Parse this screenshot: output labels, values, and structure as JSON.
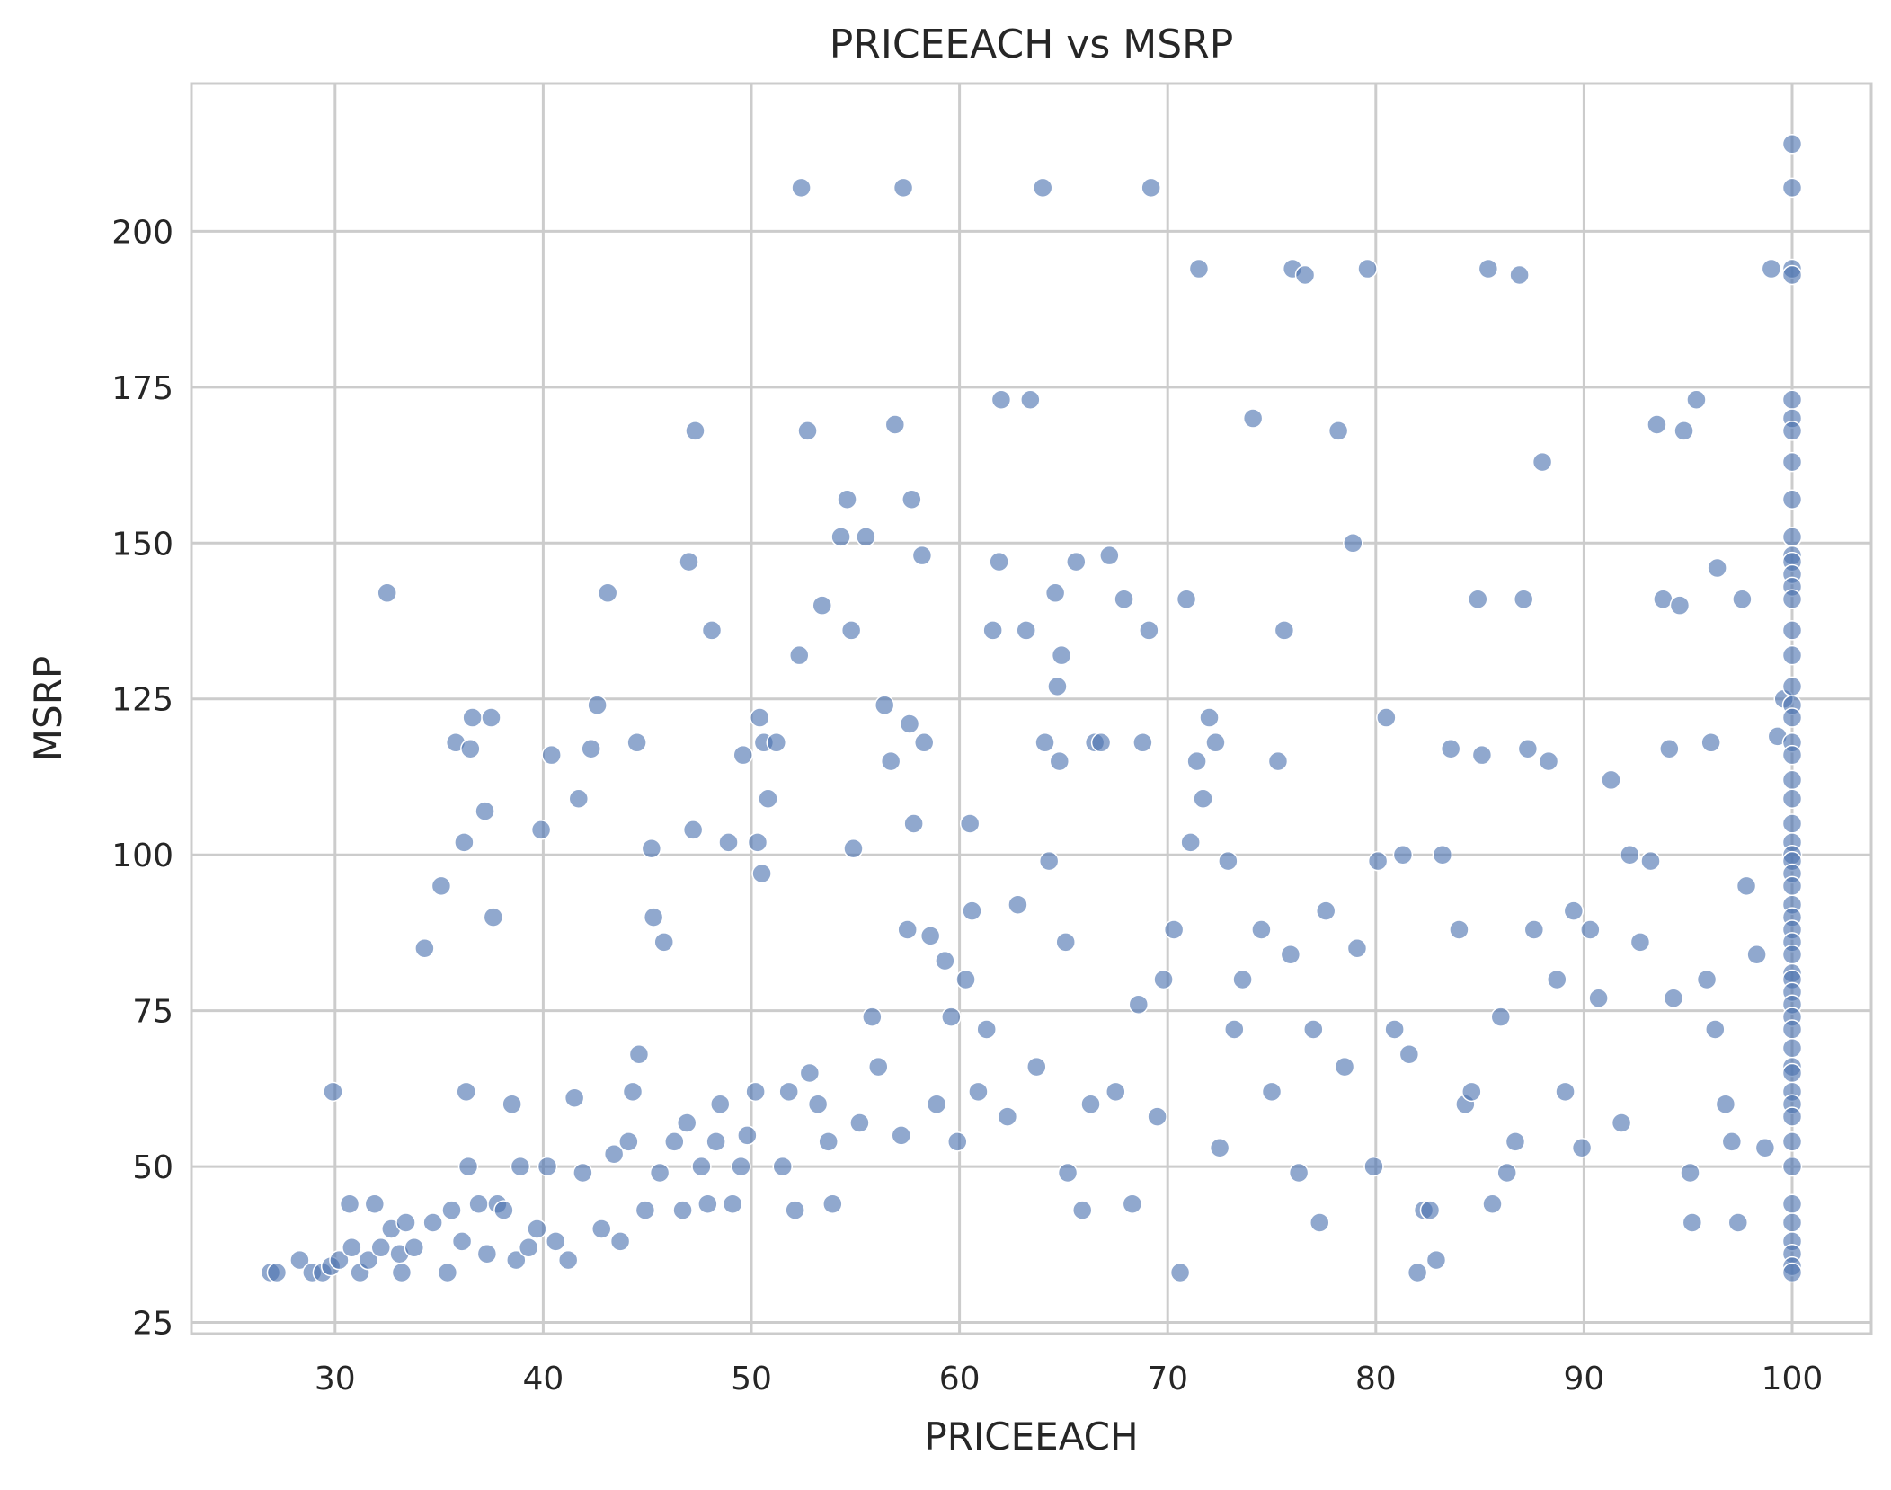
{
  "chart_data": {
    "type": "scatter",
    "title": "PRICEEACH vs MSRP",
    "xlabel": "PRICEEACH",
    "ylabel": "MSRP",
    "xlim": [
      23.1,
      103.8
    ],
    "ylim": [
      23.2,
      223.7
    ],
    "xticks": [
      30,
      40,
      50,
      60,
      70,
      80,
      90,
      100
    ],
    "yticks": [
      25,
      50,
      75,
      100,
      125,
      150,
      175,
      200
    ],
    "xtick_labels": [
      "30",
      "40",
      "50",
      "60",
      "70",
      "80",
      "90",
      "100"
    ],
    "ytick_labels": [
      "25",
      "50",
      "75",
      "100",
      "125",
      "150",
      "175",
      "200"
    ],
    "grid": true,
    "legend": "none",
    "marker_color": "#4C72B0",
    "marker_opacity": 0.62,
    "series": [
      {
        "points": [
          [
            26.9,
            33
          ],
          [
            27.2,
            33
          ],
          [
            28.3,
            35
          ],
          [
            28.9,
            33
          ],
          [
            29.4,
            33
          ],
          [
            29.8,
            34
          ],
          [
            29.9,
            62
          ],
          [
            30.2,
            35
          ],
          [
            30.7,
            44
          ],
          [
            30.8,
            37
          ],
          [
            31.2,
            33
          ],
          [
            31.6,
            35
          ],
          [
            31.9,
            44
          ],
          [
            32.2,
            37
          ],
          [
            32.5,
            142
          ],
          [
            32.7,
            40
          ],
          [
            33.1,
            36
          ],
          [
            33.2,
            33
          ],
          [
            33.4,
            41
          ],
          [
            33.8,
            37
          ],
          [
            34.3,
            85
          ],
          [
            34.7,
            41
          ],
          [
            35.1,
            95
          ],
          [
            35.4,
            33
          ],
          [
            35.6,
            43
          ],
          [
            35.8,
            118
          ],
          [
            36.1,
            38
          ],
          [
            36.2,
            102
          ],
          [
            36.3,
            62
          ],
          [
            36.4,
            50
          ],
          [
            36.5,
            117
          ],
          [
            36.6,
            122
          ],
          [
            36.9,
            44
          ],
          [
            37.2,
            107
          ],
          [
            37.3,
            36
          ],
          [
            37.5,
            122
          ],
          [
            37.6,
            90
          ],
          [
            37.8,
            44
          ],
          [
            38.1,
            43
          ],
          [
            38.5,
            60
          ],
          [
            38.7,
            35
          ],
          [
            38.9,
            50
          ],
          [
            39.3,
            37
          ],
          [
            39.7,
            40
          ],
          [
            39.9,
            104
          ],
          [
            40.2,
            50
          ],
          [
            40.4,
            116
          ],
          [
            40.6,
            38
          ],
          [
            41.2,
            35
          ],
          [
            41.5,
            61
          ],
          [
            41.7,
            109
          ],
          [
            41.9,
            49
          ],
          [
            42.3,
            117
          ],
          [
            42.6,
            124
          ],
          [
            42.8,
            40
          ],
          [
            43.1,
            142
          ],
          [
            43.4,
            52
          ],
          [
            43.7,
            38
          ],
          [
            44.1,
            54
          ],
          [
            44.3,
            62
          ],
          [
            44.5,
            118
          ],
          [
            44.6,
            68
          ],
          [
            44.9,
            43
          ],
          [
            45.2,
            101
          ],
          [
            45.3,
            90
          ],
          [
            45.6,
            49
          ],
          [
            45.8,
            86
          ],
          [
            46.3,
            54
          ],
          [
            46.7,
            43
          ],
          [
            46.9,
            57
          ],
          [
            47.0,
            147
          ],
          [
            47.2,
            104
          ],
          [
            47.3,
            168
          ],
          [
            47.6,
            50
          ],
          [
            47.9,
            44
          ],
          [
            48.1,
            136
          ],
          [
            48.3,
            54
          ],
          [
            48.5,
            60
          ],
          [
            48.9,
            102
          ],
          [
            49.1,
            44
          ],
          [
            49.5,
            50
          ],
          [
            49.6,
            116
          ],
          [
            49.8,
            55
          ],
          [
            50.2,
            62
          ],
          [
            50.3,
            102
          ],
          [
            50.4,
            122
          ],
          [
            50.5,
            97
          ],
          [
            50.6,
            118
          ],
          [
            50.8,
            109
          ],
          [
            51.2,
            118
          ],
          [
            51.5,
            50
          ],
          [
            51.8,
            62
          ],
          [
            52.1,
            43
          ],
          [
            52.3,
            132
          ],
          [
            52.4,
            207
          ],
          [
            52.7,
            168
          ],
          [
            52.8,
            65
          ],
          [
            53.2,
            60
          ],
          [
            53.4,
            140
          ],
          [
            53.7,
            54
          ],
          [
            53.9,
            44
          ],
          [
            54.3,
            151
          ],
          [
            54.6,
            157
          ],
          [
            54.8,
            136
          ],
          [
            54.9,
            101
          ],
          [
            55.2,
            57
          ],
          [
            55.5,
            151
          ],
          [
            55.8,
            74
          ],
          [
            56.1,
            66
          ],
          [
            56.4,
            124
          ],
          [
            56.7,
            115
          ],
          [
            56.9,
            169
          ],
          [
            57.2,
            55
          ],
          [
            57.3,
            207
          ],
          [
            57.5,
            88
          ],
          [
            57.6,
            121
          ],
          [
            57.7,
            157
          ],
          [
            57.8,
            105
          ],
          [
            58.2,
            148
          ],
          [
            58.3,
            118
          ],
          [
            58.6,
            87
          ],
          [
            58.9,
            60
          ],
          [
            59.3,
            83
          ],
          [
            59.6,
            74
          ],
          [
            59.9,
            54
          ],
          [
            60.3,
            80
          ],
          [
            60.5,
            105
          ],
          [
            60.6,
            91
          ],
          [
            60.9,
            62
          ],
          [
            61.3,
            72
          ],
          [
            61.6,
            136
          ],
          [
            61.9,
            147
          ],
          [
            62.0,
            173
          ],
          [
            62.3,
            58
          ],
          [
            62.8,
            92
          ],
          [
            63.2,
            136
          ],
          [
            63.4,
            173
          ],
          [
            63.7,
            66
          ],
          [
            64.0,
            207
          ],
          [
            64.1,
            118
          ],
          [
            64.3,
            99
          ],
          [
            64.6,
            142
          ],
          [
            64.7,
            127
          ],
          [
            64.8,
            115
          ],
          [
            64.9,
            132
          ],
          [
            65.1,
            86
          ],
          [
            65.2,
            49
          ],
          [
            65.6,
            147
          ],
          [
            65.9,
            43
          ],
          [
            66.3,
            60
          ],
          [
            66.5,
            118
          ],
          [
            66.8,
            118
          ],
          [
            67.2,
            148
          ],
          [
            67.5,
            62
          ],
          [
            67.9,
            141
          ],
          [
            68.3,
            44
          ],
          [
            68.6,
            76
          ],
          [
            68.8,
            118
          ],
          [
            69.1,
            136
          ],
          [
            69.2,
            207
          ],
          [
            69.5,
            58
          ],
          [
            69.8,
            80
          ],
          [
            70.3,
            88
          ],
          [
            70.6,
            33
          ],
          [
            70.9,
            141
          ],
          [
            71.1,
            102
          ],
          [
            71.4,
            115
          ],
          [
            71.5,
            194
          ],
          [
            71.7,
            109
          ],
          [
            72.0,
            122
          ],
          [
            72.3,
            118
          ],
          [
            72.5,
            53
          ],
          [
            72.9,
            99
          ],
          [
            73.2,
            72
          ],
          [
            73.6,
            80
          ],
          [
            74.1,
            170
          ],
          [
            74.5,
            88
          ],
          [
            75.0,
            62
          ],
          [
            75.3,
            115
          ],
          [
            75.6,
            136
          ],
          [
            75.9,
            84
          ],
          [
            76.0,
            194
          ],
          [
            76.3,
            49
          ],
          [
            76.6,
            193
          ],
          [
            77.0,
            72
          ],
          [
            77.3,
            41
          ],
          [
            77.6,
            91
          ],
          [
            78.2,
            168
          ],
          [
            78.5,
            66
          ],
          [
            78.9,
            150
          ],
          [
            79.1,
            85
          ],
          [
            79.6,
            194
          ],
          [
            79.9,
            50
          ],
          [
            80.1,
            99
          ],
          [
            80.5,
            122
          ],
          [
            80.9,
            72
          ],
          [
            81.3,
            100
          ],
          [
            81.6,
            68
          ],
          [
            82.0,
            33
          ],
          [
            82.3,
            43
          ],
          [
            82.6,
            43
          ],
          [
            82.9,
            35
          ],
          [
            83.2,
            100
          ],
          [
            83.6,
            117
          ],
          [
            84.0,
            88
          ],
          [
            84.3,
            60
          ],
          [
            84.6,
            62
          ],
          [
            84.9,
            141
          ],
          [
            85.1,
            116
          ],
          [
            85.4,
            194
          ],
          [
            85.6,
            44
          ],
          [
            86.0,
            74
          ],
          [
            86.3,
            49
          ],
          [
            86.7,
            54
          ],
          [
            86.9,
            193
          ],
          [
            87.1,
            141
          ],
          [
            87.3,
            117
          ],
          [
            87.6,
            88
          ],
          [
            88.0,
            163
          ],
          [
            88.3,
            115
          ],
          [
            88.7,
            80
          ],
          [
            89.1,
            62
          ],
          [
            89.5,
            91
          ],
          [
            89.9,
            53
          ],
          [
            90.3,
            88
          ],
          [
            90.7,
            77
          ],
          [
            91.3,
            112
          ],
          [
            91.8,
            57
          ],
          [
            92.2,
            100
          ],
          [
            92.7,
            86
          ],
          [
            93.2,
            99
          ],
          [
            93.5,
            169
          ],
          [
            93.8,
            141
          ],
          [
            94.1,
            117
          ],
          [
            94.3,
            77
          ],
          [
            94.6,
            140
          ],
          [
            94.8,
            168
          ],
          [
            95.1,
            49
          ],
          [
            95.2,
            41
          ],
          [
            95.4,
            173
          ],
          [
            95.9,
            80
          ],
          [
            96.1,
            118
          ],
          [
            96.4,
            146
          ],
          [
            96.3,
            72
          ],
          [
            96.8,
            60
          ],
          [
            97.1,
            54
          ],
          [
            97.4,
            41
          ],
          [
            97.6,
            141
          ],
          [
            97.8,
            95
          ],
          [
            98.3,
            84
          ],
          [
            98.7,
            53
          ],
          [
            99.0,
            194
          ],
          [
            99.3,
            119
          ],
          [
            99.6,
            125
          ],
          [
            100,
            214
          ],
          [
            100,
            207
          ],
          [
            100,
            194
          ],
          [
            100,
            193
          ],
          [
            100,
            173
          ],
          [
            100,
            170
          ],
          [
            100,
            168
          ],
          [
            100,
            163
          ],
          [
            100,
            157
          ],
          [
            100,
            151
          ],
          [
            100,
            148
          ],
          [
            100,
            147
          ],
          [
            100,
            145
          ],
          [
            100,
            143
          ],
          [
            100,
            141
          ],
          [
            100,
            136
          ],
          [
            100,
            132
          ],
          [
            100,
            127
          ],
          [
            100,
            124
          ],
          [
            100,
            122
          ],
          [
            100,
            118
          ],
          [
            100,
            116
          ],
          [
            100,
            112
          ],
          [
            100,
            109
          ],
          [
            100,
            105
          ],
          [
            100,
            102
          ],
          [
            100,
            100
          ],
          [
            100,
            99
          ],
          [
            100,
            97
          ],
          [
            100,
            95
          ],
          [
            100,
            92
          ],
          [
            100,
            90
          ],
          [
            100,
            88
          ],
          [
            100,
            86
          ],
          [
            100,
            84
          ],
          [
            100,
            81
          ],
          [
            100,
            80
          ],
          [
            100,
            78
          ],
          [
            100,
            76
          ],
          [
            100,
            74
          ],
          [
            100,
            72
          ],
          [
            100,
            69
          ],
          [
            100,
            66
          ],
          [
            100,
            65
          ],
          [
            100,
            62
          ],
          [
            100,
            60
          ],
          [
            100,
            58
          ],
          [
            100,
            54
          ],
          [
            100,
            50
          ],
          [
            100,
            44
          ],
          [
            100,
            41
          ],
          [
            100,
            38
          ],
          [
            100,
            36
          ],
          [
            100,
            34
          ],
          [
            100,
            33
          ]
        ]
      }
    ]
  }
}
